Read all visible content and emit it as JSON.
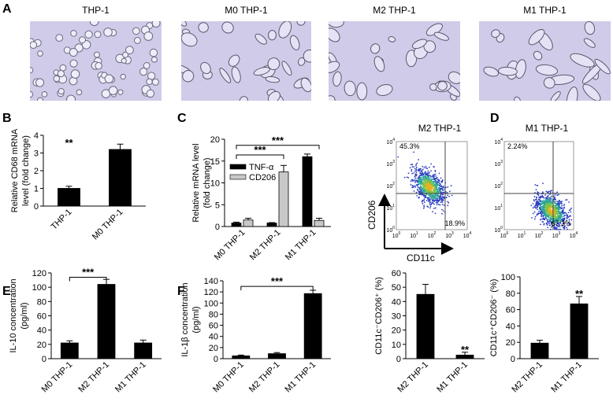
{
  "micrographs": {
    "label": "A",
    "titles": [
      "THP-1",
      "M0 THP-1",
      "M2 THP-1",
      "M1 THP-1"
    ]
  },
  "flow": {
    "label": "D",
    "x_label": "CD11c",
    "y_label": "CD206",
    "tick_base": "10",
    "ticks": [
      0,
      1,
      2,
      3,
      4
    ],
    "plots": [
      {
        "title": "M2 THP-1",
        "upper_left": "45.3%",
        "lower_right": "18.9%"
      },
      {
        "title": "M1 THP-1",
        "upper_left": "2.24%",
        "lower_right": "67.3%"
      }
    ]
  },
  "chart_data": [
    {
      "type": "bar",
      "label": "B",
      "y_label": [
        "Relative CD68 mRNA",
        "level (fold change)"
      ],
      "categories": [
        "THP-1",
        "M0 THP-1"
      ],
      "values": [
        1.0,
        3.2
      ],
      "errors": [
        0.12,
        0.3
      ],
      "color": "#000000",
      "ylim": [
        0,
        4
      ],
      "yticks": [
        0,
        1,
        2,
        3,
        4
      ],
      "annotations": [
        "**"
      ]
    },
    {
      "type": "bar",
      "label": "C",
      "y_label": [
        "Relative mRNA level",
        "(fold change)"
      ],
      "categories": [
        "M0 THP-1",
        "M2 THP-1",
        "M1 THP-1"
      ],
      "series": [
        {
          "name": "TNF-α",
          "color": "#000000",
          "values": [
            0.8,
            0.8,
            16
          ],
          "errors": [
            0.2,
            0.1,
            0.6
          ]
        },
        {
          "name": "CD206",
          "color": "#c8c8c8",
          "values": [
            1.5,
            12.5,
            1.4
          ],
          "errors": [
            0.4,
            1.5,
            0.5
          ]
        }
      ],
      "ylim": [
        0,
        20
      ],
      "yticks": [
        0,
        5,
        10,
        15,
        20
      ],
      "annotations": [
        "***",
        "***"
      ]
    },
    {
      "type": "bar",
      "label": "E",
      "y_label": [
        "IL-10 concentration",
        "(pg/ml)"
      ],
      "categories": [
        "M0 THP-1",
        "M2 THP-1",
        "M1 THP-1"
      ],
      "values": [
        22,
        104,
        22
      ],
      "errors": [
        3,
        7,
        4
      ],
      "color": "#000000",
      "ylim": [
        0,
        120
      ],
      "yticks": [
        0,
        20,
        40,
        60,
        80,
        100,
        120
      ],
      "annotations": [
        "***"
      ]
    },
    {
      "type": "bar",
      "label": "F",
      "y_label": [
        "IL-1β concentration",
        "(pg/ml)"
      ],
      "categories": [
        "M0 THP-1",
        "M2 THP-1",
        "M1 THP-1"
      ],
      "values": [
        5,
        9,
        117
      ],
      "errors": [
        1.5,
        2,
        6
      ],
      "color": "#000000",
      "ylim": [
        0,
        140
      ],
      "yticks": [
        0,
        20,
        40,
        60,
        80,
        100,
        120,
        140
      ],
      "annotations": [
        "***"
      ]
    },
    {
      "type": "bar",
      "y_label": [
        "CD11c⁻CD206⁺ (%)"
      ],
      "categories": [
        "M2 THP-1",
        "M1 THP-1"
      ],
      "values": [
        45,
        2.5
      ],
      "errors": [
        7,
        2
      ],
      "color": "#000000",
      "ylim": [
        0,
        60
      ],
      "yticks": [
        0,
        10,
        20,
        30,
        40,
        50,
        60
      ],
      "annotations": [
        "**"
      ]
    },
    {
      "type": "bar",
      "y_label": [
        "CD11c⁺CD206⁻ (%)"
      ],
      "categories": [
        "M2 THP-1",
        "M1 THP-1"
      ],
      "values": [
        19,
        67
      ],
      "errors": [
        3.5,
        9
      ],
      "color": "#000000",
      "ylim": [
        0,
        100
      ],
      "yticks": [
        0,
        20,
        40,
        60,
        80,
        100
      ],
      "annotations": [
        "**"
      ]
    }
  ]
}
